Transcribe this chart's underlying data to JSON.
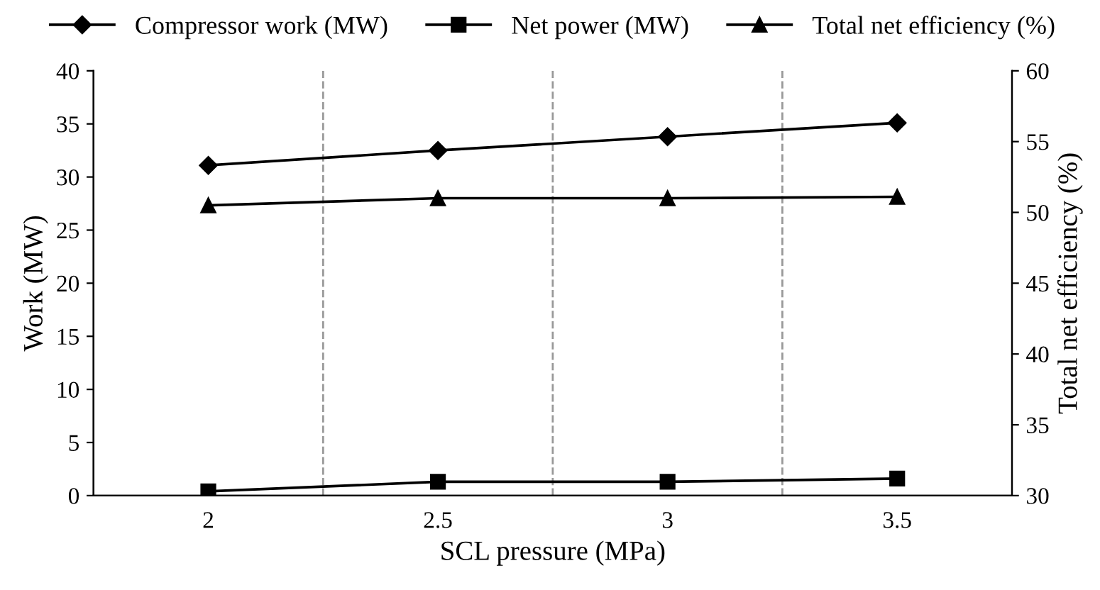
{
  "chart_data": {
    "type": "line",
    "xlabel": "SCL pressure (MPa)",
    "ylabel": "Work (MW)",
    "y2label": "Total net efficiency (%)",
    "categories": [
      "2",
      "2.5",
      "3",
      "3.5"
    ],
    "series": [
      {
        "name": "Compressor work (MW)",
        "color": "#000000",
        "marker": "diamond",
        "values": [
          31.1,
          32.5,
          33.8,
          35.1
        ]
      },
      {
        "name": "Net power (MW)",
        "color": "#000000",
        "marker": "square",
        "values": [
          0.4,
          1.3,
          1.3,
          1.6
        ]
      },
      {
        "name": "Total net efficiency (%)",
        "color": "#000000",
        "marker": "triangle",
        "axis": "y2",
        "values": [
          50.5,
          51.0,
          51.0,
          51.1
        ]
      }
    ],
    "ylim": [
      0,
      40
    ],
    "yticks": [
      0,
      5,
      10,
      15,
      20,
      25,
      30,
      35,
      40
    ],
    "y2lim": [
      30,
      60
    ],
    "y2ticks": [
      30,
      35,
      40,
      45,
      50,
      55,
      60
    ],
    "grid": "x",
    "legend": "top",
    "line_style": "solid"
  }
}
